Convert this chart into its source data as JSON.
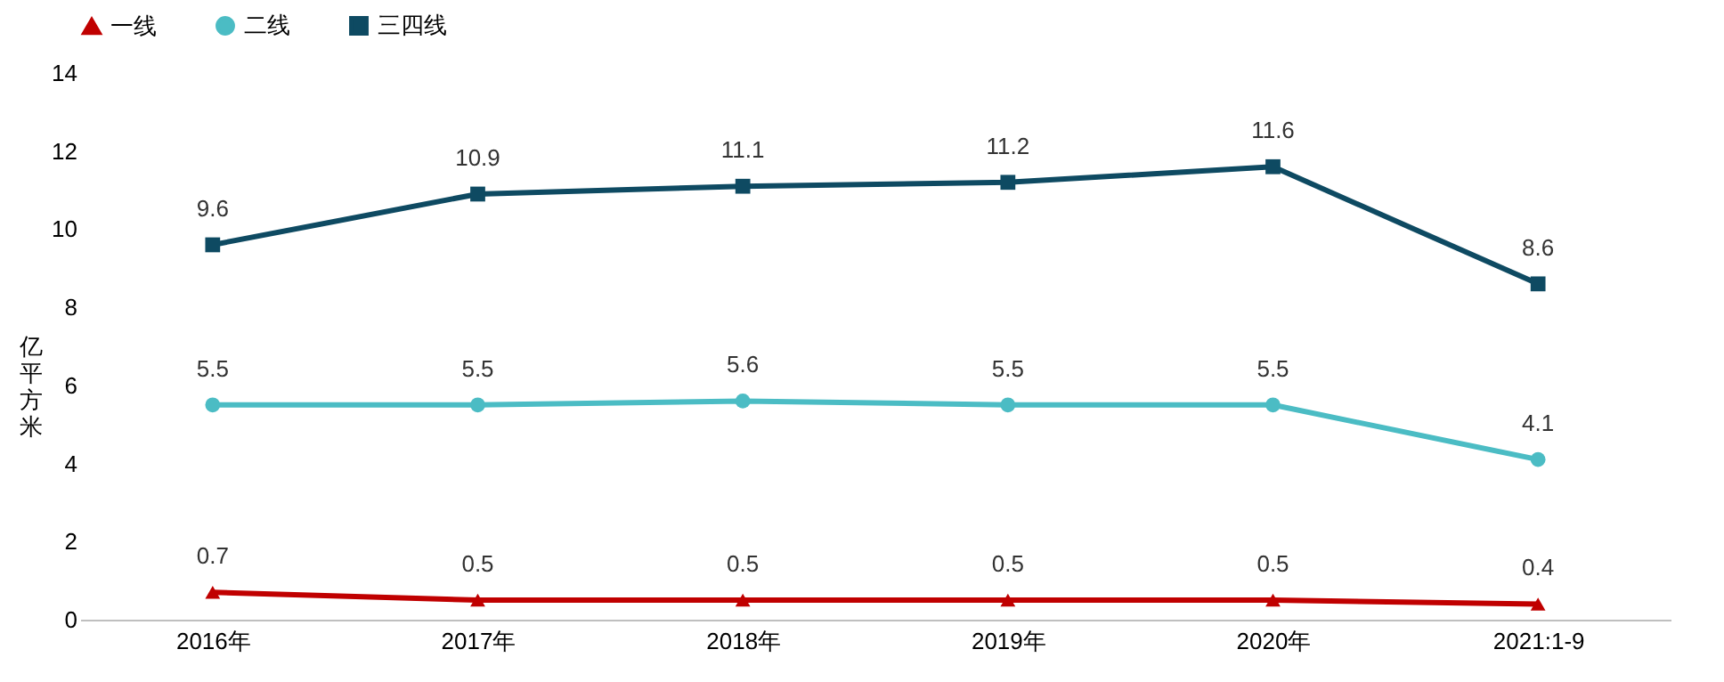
{
  "chart_data": {
    "type": "line",
    "ylabel": "亿平方米",
    "categories": [
      "2016年",
      "2017年",
      "2018年",
      "2019年",
      "2020年",
      "2021:1-9"
    ],
    "series": [
      {
        "name": "一线",
        "color": "#c00000",
        "marker": "triangle",
        "values": [
          0.7,
          0.5,
          0.5,
          0.5,
          0.5,
          0.4
        ]
      },
      {
        "name": "二线",
        "color": "#4bbcc4",
        "marker": "circle",
        "values": [
          5.5,
          5.5,
          5.6,
          5.5,
          5.5,
          4.1
        ]
      },
      {
        "name": "三四线",
        "color": "#0e4a62",
        "marker": "square",
        "values": [
          9.6,
          10.9,
          11.1,
          11.2,
          11.6,
          8.6
        ]
      }
    ],
    "ylim": [
      0,
      14
    ],
    "yticks": [
      0,
      2,
      4,
      6,
      8,
      10,
      12,
      14
    ],
    "data_labels": true,
    "grid": false,
    "legend": "top",
    "line_style": "solid"
  }
}
